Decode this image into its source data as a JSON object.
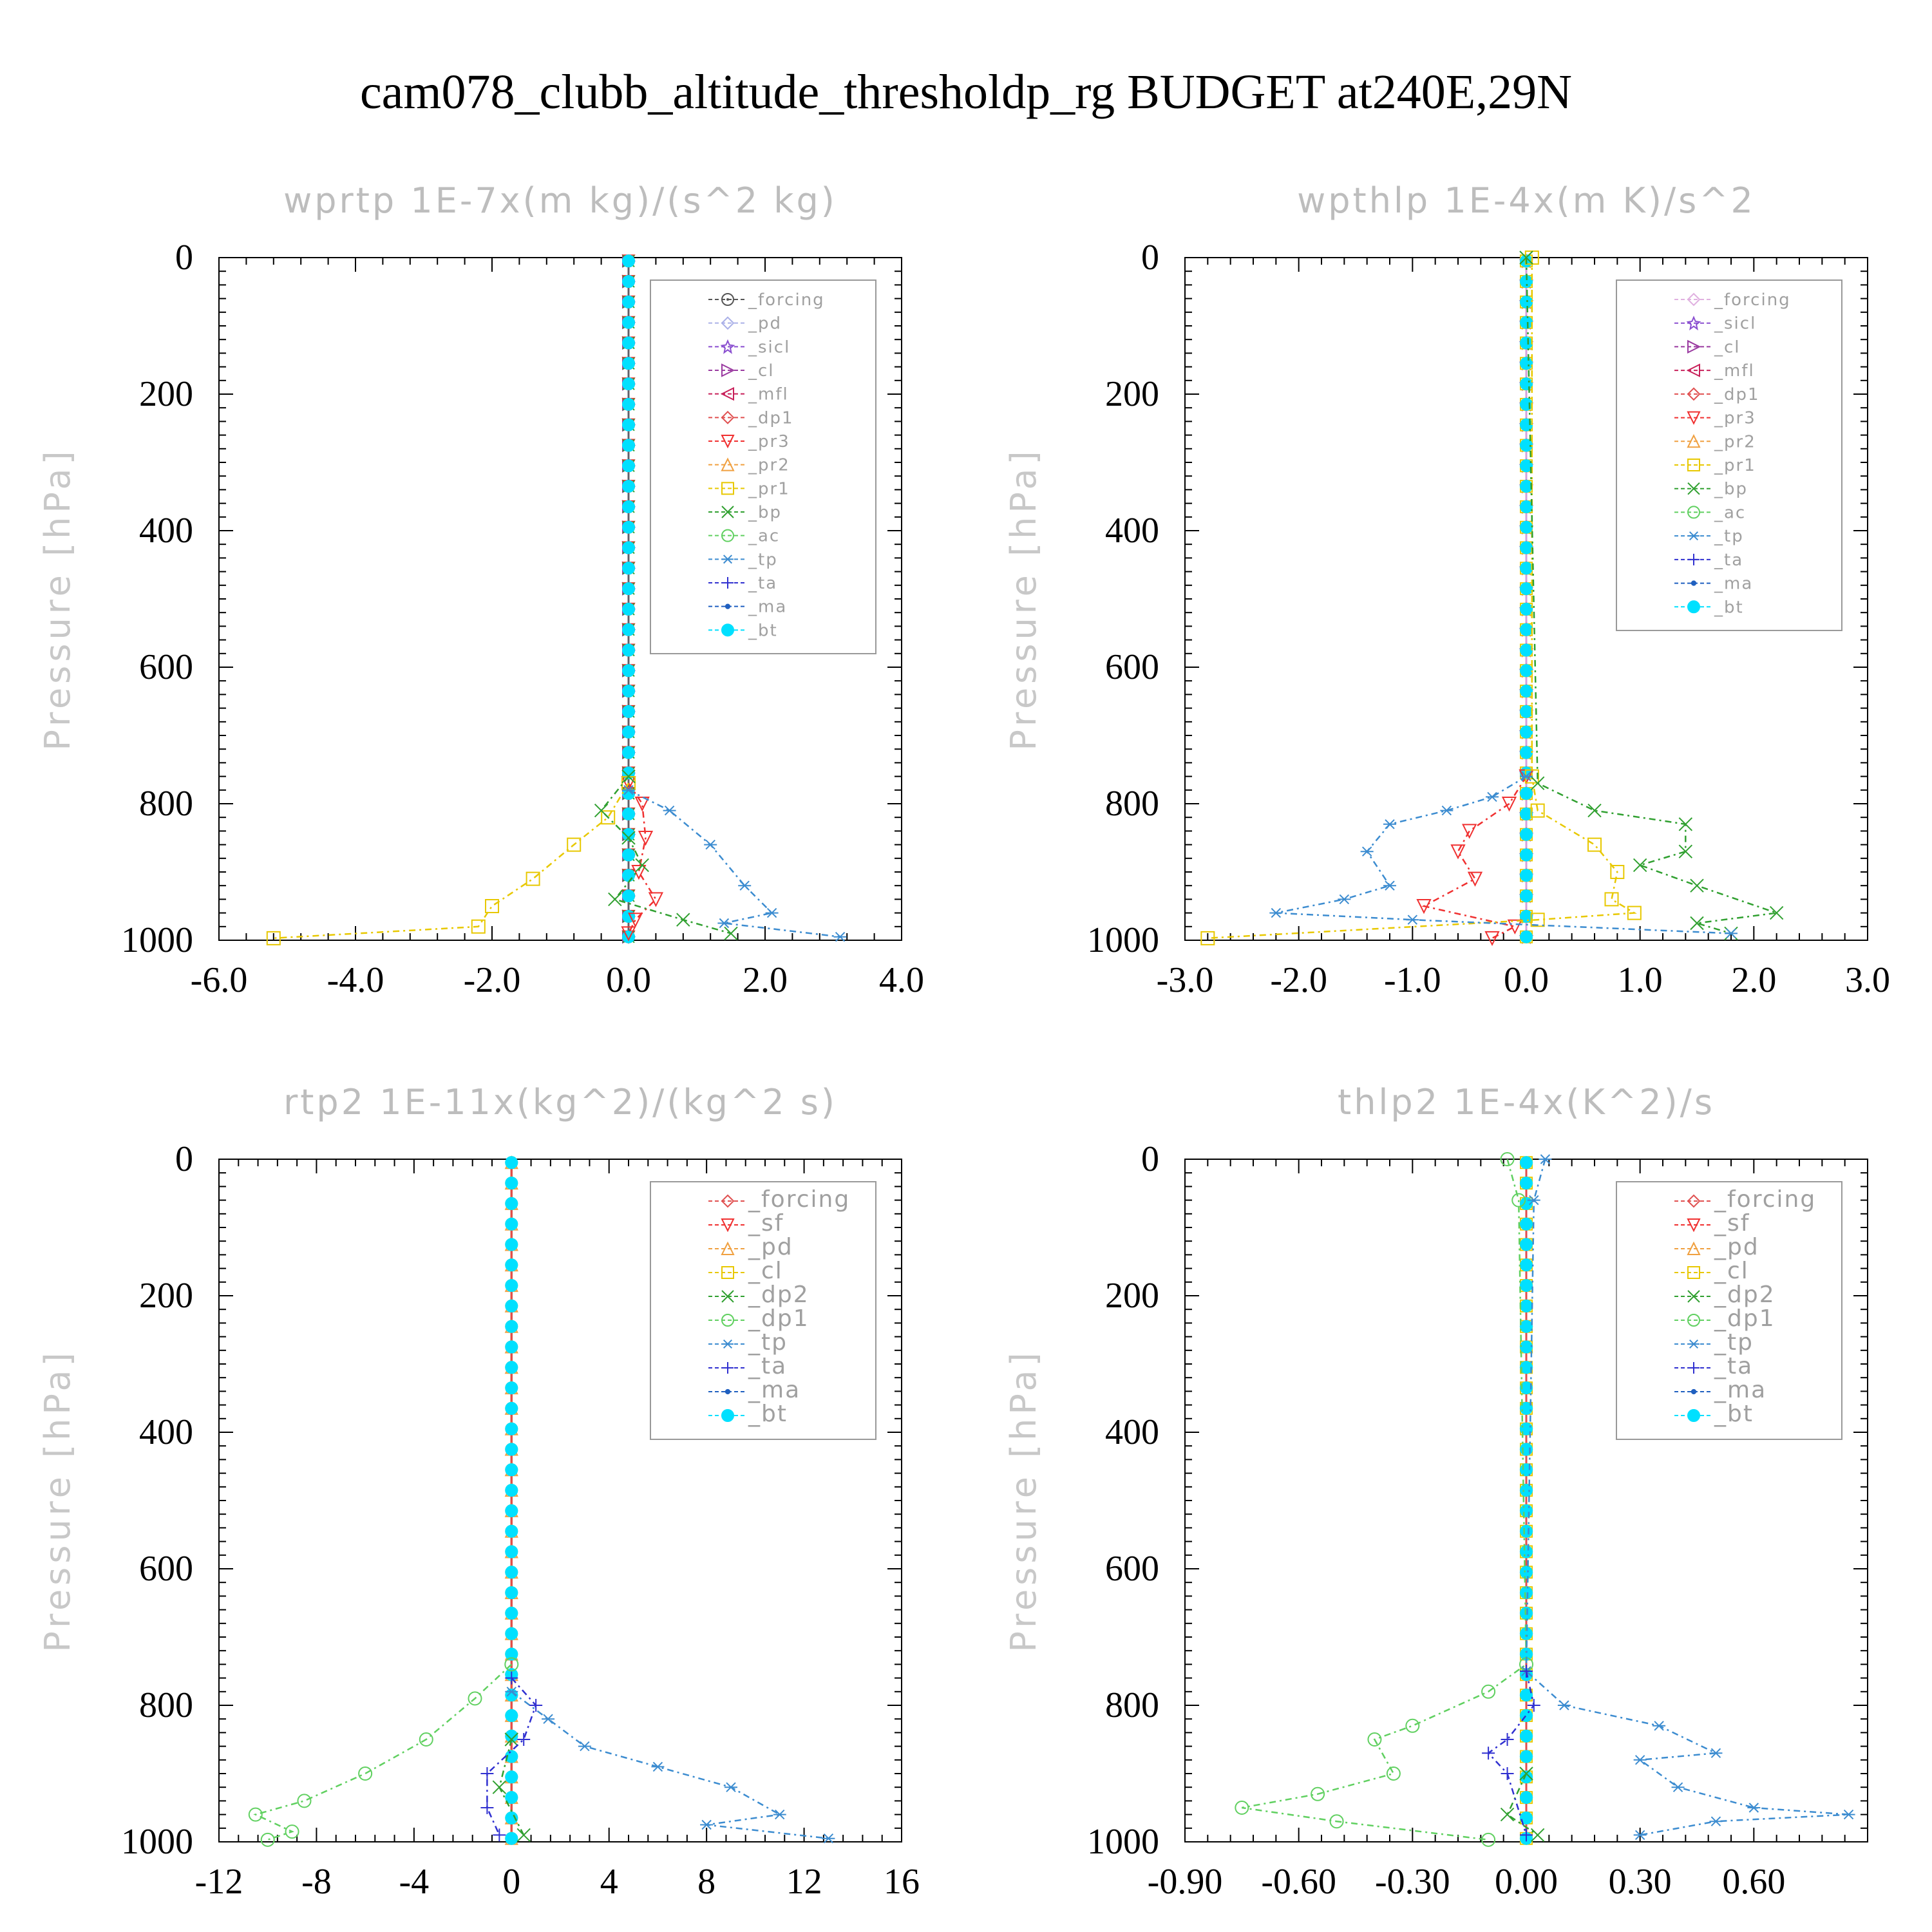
{
  "title": "cam078_clubb_altitude_thresholdp_rg  BUDGET at240E,29N",
  "chart_data": [
    {
      "type": "line",
      "title": "wprtp   1E-7x(m kg)/(s^2 kg)",
      "ylabel": "Pressure [hPa]",
      "xlim": [
        -6,
        4
      ],
      "ylim": [
        1000,
        0
      ],
      "xticks": [
        -6,
        -4,
        -2,
        0,
        2,
        4
      ],
      "xtick_labels": [
        "-6.0",
        "-4.0",
        "-2.0",
        "0.0",
        "2.0",
        "4.0"
      ],
      "yticks": [
        0,
        200,
        400,
        600,
        800,
        1000
      ],
      "ytick_labels": [
        "0",
        "200",
        "400",
        "600",
        "800",
        "1000"
      ],
      "legend_position": "top-right",
      "series": [
        {
          "name": "_forcing",
          "color": "#555555",
          "marker": "circle-dot",
          "points": []
        },
        {
          "name": "_pd",
          "color": "#aab0e8",
          "marker": "diamond",
          "points": []
        },
        {
          "name": "_sicl",
          "color": "#8a4fd0",
          "marker": "star",
          "points": []
        },
        {
          "name": "_cl",
          "color": "#9a3aa0",
          "marker": "tri-right",
          "points": []
        },
        {
          "name": "_mfl",
          "color": "#c8205a",
          "marker": "tri-left",
          "points": []
        },
        {
          "name": "_dp1",
          "color": "#e05050",
          "marker": "diamond",
          "points": []
        },
        {
          "name": "_pr3",
          "color": "#f03030",
          "marker": "tri-down",
          "points": [
            [
              0,
              770
            ],
            [
              0.2,
              800
            ],
            [
              0.25,
              850
            ],
            [
              0.15,
              900
            ],
            [
              0.4,
              940
            ],
            [
              0.1,
              970
            ],
            [
              0,
              990
            ]
          ]
        },
        {
          "name": "_pr2",
          "color": "#f0a040",
          "marker": "tri-up",
          "points": []
        },
        {
          "name": "_pr1",
          "color": "#e8c800",
          "marker": "square",
          "points": [
            [
              0,
              770
            ],
            [
              -0.3,
              820
            ],
            [
              -0.8,
              860
            ],
            [
              -1.4,
              910
            ],
            [
              -2.0,
              950
            ],
            [
              -2.2,
              980
            ],
            [
              -5.2,
              997
            ]
          ]
        },
        {
          "name": "_bp",
          "color": "#30a030",
          "marker": "x",
          "points": [
            [
              0,
              760
            ],
            [
              -0.4,
              810
            ],
            [
              0,
              850
            ],
            [
              0.2,
              890
            ],
            [
              -0.2,
              940
            ],
            [
              0.8,
              970
            ],
            [
              1.5,
              990
            ]
          ]
        },
        {
          "name": "_ac",
          "color": "#60d060",
          "marker": "circle",
          "points": []
        },
        {
          "name": "_tp",
          "color": "#3c8cd0",
          "marker": "asterisk",
          "points": [
            [
              0,
              780
            ],
            [
              0.6,
              810
            ],
            [
              1.2,
              860
            ],
            [
              1.7,
              920
            ],
            [
              2.1,
              960
            ],
            [
              1.4,
              975
            ],
            [
              3.1,
              995
            ]
          ]
        },
        {
          "name": "_ta",
          "color": "#3030d0",
          "marker": "plus",
          "points": []
        },
        {
          "name": "_ma",
          "color": "#2060c0",
          "marker": "dot",
          "points": []
        },
        {
          "name": "_bt",
          "color": "#00e0ff",
          "marker": "filled-circle",
          "points": []
        }
      ]
    },
    {
      "type": "line",
      "title": "wpthlp   1E-4x(m K)/s^2",
      "ylabel": "Pressure [hPa]",
      "xlim": [
        -3,
        3
      ],
      "ylim": [
        1000,
        0
      ],
      "xticks": [
        -3,
        -2,
        -1,
        0,
        1,
        2,
        3
      ],
      "xtick_labels": [
        "-3.0",
        "-2.0",
        "-1.0",
        "0.0",
        "1.0",
        "2.0",
        "3.0"
      ],
      "yticks": [
        0,
        200,
        400,
        600,
        800,
        1000
      ],
      "ytick_labels": [
        "0",
        "200",
        "400",
        "600",
        "800",
        "1000"
      ],
      "legend_position": "top-right",
      "series": [
        {
          "name": "_forcing",
          "color": "#e0b0e0",
          "marker": "diamond",
          "points": []
        },
        {
          "name": "_sicl",
          "color": "#8a4fd0",
          "marker": "star",
          "points": []
        },
        {
          "name": "_cl",
          "color": "#9a3aa0",
          "marker": "tri-right",
          "points": []
        },
        {
          "name": "_mfl",
          "color": "#c8205a",
          "marker": "tri-left",
          "points": []
        },
        {
          "name": "_dp1",
          "color": "#e05050",
          "marker": "diamond",
          "points": []
        },
        {
          "name": "_pr3",
          "color": "#f03030",
          "marker": "tri-down",
          "points": [
            [
              0,
              760
            ],
            [
              -0.15,
              800
            ],
            [
              -0.5,
              840
            ],
            [
              -0.6,
              870
            ],
            [
              -0.45,
              910
            ],
            [
              -0.9,
              950
            ],
            [
              -0.1,
              980
            ],
            [
              -0.3,
              997
            ]
          ]
        },
        {
          "name": "_pr2",
          "color": "#f0a040",
          "marker": "tri-up",
          "points": []
        },
        {
          "name": "_pr1",
          "color": "#e8c800",
          "marker": "square",
          "points": [
            [
              0.05,
              0
            ],
            [
              0.05,
              760
            ],
            [
              0.1,
              810
            ],
            [
              0.6,
              860
            ],
            [
              0.8,
              900
            ],
            [
              0.75,
              940
            ],
            [
              0.95,
              960
            ],
            [
              0.1,
              970
            ],
            [
              -2.8,
              997
            ]
          ]
        },
        {
          "name": "_bp",
          "color": "#30a030",
          "marker": "x",
          "points": [
            [
              0,
              0
            ],
            [
              0.1,
              770
            ],
            [
              0.6,
              810
            ],
            [
              1.4,
              830
            ],
            [
              1.4,
              870
            ],
            [
              1.0,
              890
            ],
            [
              1.5,
              920
            ],
            [
              2.2,
              960
            ],
            [
              1.5,
              975
            ],
            [
              1.8,
              990
            ]
          ]
        },
        {
          "name": "_ac",
          "color": "#60d060",
          "marker": "circle",
          "points": []
        },
        {
          "name": "_tp",
          "color": "#3c8cd0",
          "marker": "asterisk",
          "points": [
            [
              0,
              760
            ],
            [
              -0.3,
              790
            ],
            [
              -0.7,
              810
            ],
            [
              -1.2,
              830
            ],
            [
              -1.4,
              870
            ],
            [
              -1.2,
              920
            ],
            [
              -1.6,
              940
            ],
            [
              -2.2,
              960
            ],
            [
              -1.0,
              970
            ],
            [
              1.8,
              990
            ]
          ]
        },
        {
          "name": "_ta",
          "color": "#3030d0",
          "marker": "plus",
          "points": []
        },
        {
          "name": "_ma",
          "color": "#2060c0",
          "marker": "dot",
          "points": []
        },
        {
          "name": "_bt",
          "color": "#00e0ff",
          "marker": "filled-circle",
          "points": []
        }
      ]
    },
    {
      "type": "line",
      "title": "rtp2   1E-11x(kg^2)/(kg^2 s)",
      "ylabel": "Pressure [hPa]",
      "xlim": [
        -12,
        16
      ],
      "ylim": [
        1000,
        0
      ],
      "xticks": [
        -12,
        -8,
        -4,
        0,
        4,
        8,
        12,
        16
      ],
      "xtick_labels": [
        "-12",
        "-8",
        "-4",
        "0",
        "4",
        "8",
        "12",
        "16"
      ],
      "yticks": [
        0,
        200,
        400,
        600,
        800,
        1000
      ],
      "ytick_labels": [
        "0",
        "200",
        "400",
        "600",
        "800",
        "1000"
      ],
      "legend_position": "top-right",
      "series": [
        {
          "name": "_forcing",
          "color": "#e05050",
          "marker": "diamond",
          "points": []
        },
        {
          "name": "_sf",
          "color": "#f03030",
          "marker": "tri-down",
          "points": []
        },
        {
          "name": "_pd",
          "color": "#f0a040",
          "marker": "tri-up",
          "points": []
        },
        {
          "name": "_cl",
          "color": "#e8c800",
          "marker": "square",
          "points": []
        },
        {
          "name": "_dp2",
          "color": "#30a030",
          "marker": "x",
          "points": [
            [
              0,
              850
            ],
            [
              -0.5,
              920
            ],
            [
              0.5,
              990
            ]
          ]
        },
        {
          "name": "_dp1",
          "color": "#60d060",
          "marker": "circle",
          "points": [
            [
              0,
              740
            ],
            [
              -1.5,
              790
            ],
            [
              -3.5,
              850
            ],
            [
              -6,
              900
            ],
            [
              -8.5,
              940
            ],
            [
              -10.5,
              960
            ],
            [
              -9,
              985
            ],
            [
              -10,
              997
            ]
          ]
        },
        {
          "name": "_tp",
          "color": "#3c8cd0",
          "marker": "asterisk",
          "points": [
            [
              0,
              780
            ],
            [
              1.5,
              820
            ],
            [
              3,
              860
            ],
            [
              6,
              890
            ],
            [
              9,
              920
            ],
            [
              11,
              960
            ],
            [
              8,
              975
            ],
            [
              13,
              995
            ]
          ]
        },
        {
          "name": "_ta",
          "color": "#3030d0",
          "marker": "plus",
          "points": [
            [
              0,
              760
            ],
            [
              1,
              800
            ],
            [
              0.5,
              850
            ],
            [
              -1,
              900
            ],
            [
              -1,
              950
            ],
            [
              -0.5,
              990
            ]
          ]
        },
        {
          "name": "_ma",
          "color": "#2060c0",
          "marker": "dot",
          "points": []
        },
        {
          "name": "_bt",
          "color": "#00e0ff",
          "marker": "filled-circle",
          "points": []
        }
      ]
    },
    {
      "type": "line",
      "title": "thlp2   1E-4x(K^2)/s",
      "ylabel": "Pressure [hPa]",
      "xlim": [
        -0.9,
        0.9
      ],
      "ylim": [
        1000,
        0
      ],
      "xticks": [
        -0.9,
        -0.6,
        -0.3,
        0,
        0.3,
        0.6
      ],
      "xtick_labels": [
        "-0.90",
        "-0.60",
        "-0.30",
        "0.00",
        "0.30",
        "0.60"
      ],
      "yticks": [
        0,
        200,
        400,
        600,
        800,
        1000
      ],
      "ytick_labels": [
        "0",
        "200",
        "400",
        "600",
        "800",
        "1000"
      ],
      "legend_position": "top-right",
      "series": [
        {
          "name": "_forcing",
          "color": "#e05050",
          "marker": "diamond",
          "points": []
        },
        {
          "name": "_sf",
          "color": "#f03030",
          "marker": "tri-down",
          "points": []
        },
        {
          "name": "_pd",
          "color": "#f0a040",
          "marker": "tri-up",
          "points": []
        },
        {
          "name": "_cl",
          "color": "#e8c800",
          "marker": "square",
          "points": []
        },
        {
          "name": "_dp2",
          "color": "#30a030",
          "marker": "x",
          "points": [
            [
              0,
              900
            ],
            [
              -0.05,
              960
            ],
            [
              0.03,
              990
            ]
          ]
        },
        {
          "name": "_dp1",
          "color": "#60d060",
          "marker": "circle",
          "points": [
            [
              -0.05,
              0
            ],
            [
              -0.02,
              60
            ],
            [
              0,
              740
            ],
            [
              -0.1,
              780
            ],
            [
              -0.3,
              830
            ],
            [
              -0.4,
              850
            ],
            [
              -0.35,
              900
            ],
            [
              -0.55,
              930
            ],
            [
              -0.75,
              950
            ],
            [
              -0.5,
              970
            ],
            [
              -0.1,
              997
            ]
          ]
        },
        {
          "name": "_tp",
          "color": "#3c8cd0",
          "marker": "asterisk",
          "points": [
            [
              0.05,
              0
            ],
            [
              0.02,
              60
            ],
            [
              0,
              750
            ],
            [
              0.1,
              800
            ],
            [
              0.35,
              830
            ],
            [
              0.5,
              870
            ],
            [
              0.3,
              880
            ],
            [
              0.4,
              920
            ],
            [
              0.6,
              950
            ],
            [
              0.85,
              960
            ],
            [
              0.5,
              970
            ],
            [
              0.3,
              990
            ]
          ]
        },
        {
          "name": "_ta",
          "color": "#3030d0",
          "marker": "plus",
          "points": [
            [
              0,
              750
            ],
            [
              0.02,
              800
            ],
            [
              -0.05,
              850
            ],
            [
              -0.1,
              870
            ],
            [
              -0.05,
              900
            ],
            [
              0,
              990
            ]
          ]
        },
        {
          "name": "_ma",
          "color": "#2060c0",
          "marker": "dot",
          "points": []
        },
        {
          "name": "_bt",
          "color": "#00e0ff",
          "marker": "filled-circle",
          "points": []
        }
      ]
    }
  ]
}
